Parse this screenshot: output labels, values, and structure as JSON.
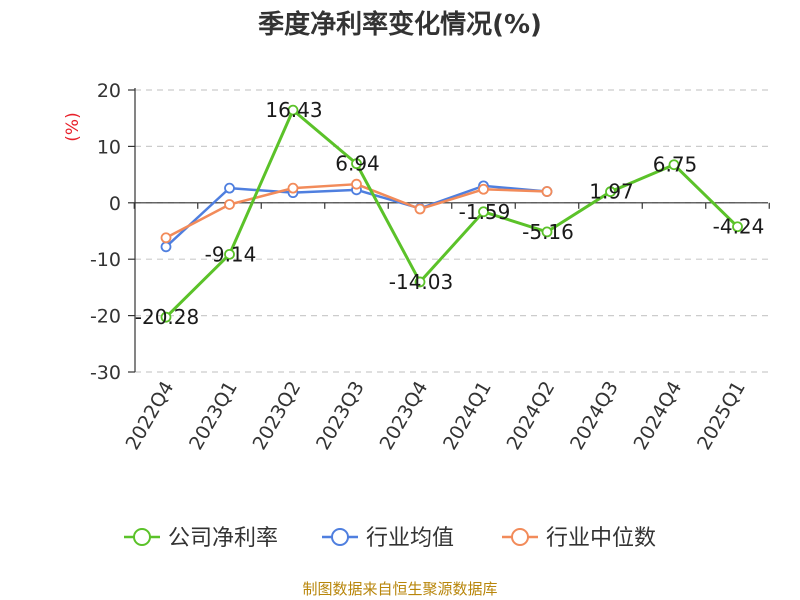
{
  "chart_data": {
    "type": "line",
    "title": "季度净利率变化情况(%)",
    "ylabel": "(%)",
    "xlabel": "",
    "ylim": [
      -30,
      20
    ],
    "yticks": [
      20,
      10,
      0,
      -10,
      -20,
      -30
    ],
    "grid": true,
    "legend_position": "bottom",
    "categories": [
      "2022Q4",
      "2023Q1",
      "2023Q2",
      "2023Q3",
      "2023Q4",
      "2024Q1",
      "2024Q2",
      "2024Q3",
      "2024Q4",
      "2025Q1"
    ],
    "series": [
      {
        "name": "公司净利率",
        "color": "#5bc229",
        "values": [
          -20.28,
          -9.14,
          16.43,
          6.94,
          -14.03,
          -1.59,
          -5.16,
          1.97,
          6.75,
          -4.24
        ],
        "labels": [
          "-20.28",
          "-9.14",
          "16.43",
          "6.94",
          "-14.03",
          "-1.59",
          "-5.16",
          "1.97",
          "6.75",
          "-4.24"
        ]
      },
      {
        "name": "行业均值",
        "color": "#4f7fdf",
        "values": [
          -7.8,
          2.6,
          1.8,
          2.3,
          -1.0,
          3.0,
          2.0,
          null,
          null,
          null
        ]
      },
      {
        "name": "行业中位数",
        "color": "#f28b5a",
        "values": [
          -6.2,
          -0.3,
          2.6,
          3.3,
          -1.1,
          2.4,
          2.0,
          null,
          null,
          null
        ]
      }
    ]
  },
  "source_text": "制图数据来自恒生聚源数据库"
}
